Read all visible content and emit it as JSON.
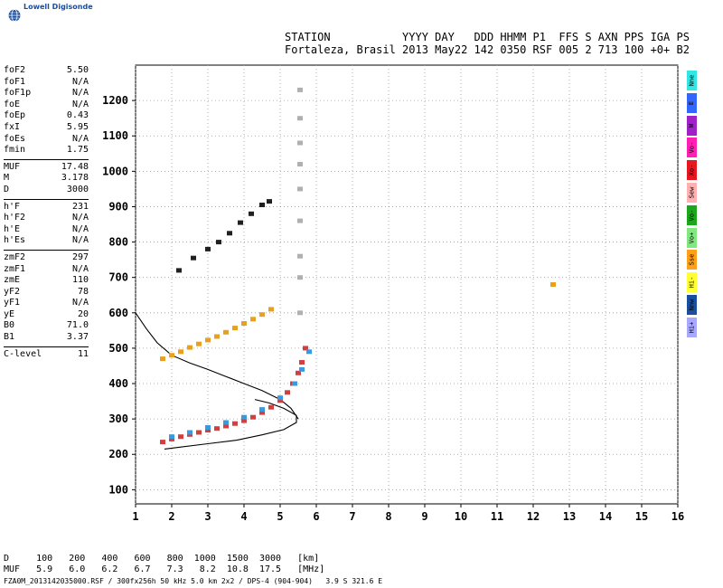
{
  "header": {
    "logo_text": "Lowell Digisonde",
    "labels_line": "STATION           YYYY DAY   DDD HHMM P1  FFS S AXN PPS IGA PS",
    "values_line": "Fortaleza, Brasil 2013 May22 142 0350 RSF 005 2 713 100 +0+ B2"
  },
  "params": {
    "groups": [
      [
        [
          "foF2",
          "5.50"
        ],
        [
          "foF1",
          "N/A"
        ],
        [
          "foF1p",
          "N/A"
        ],
        [
          "foE",
          "N/A"
        ],
        [
          "foEp",
          "0.43"
        ],
        [
          "fxI",
          "5.95"
        ],
        [
          "foEs",
          "N/A"
        ],
        [
          "fmin",
          "1.75"
        ]
      ],
      [
        [
          "MUF",
          "17.48"
        ],
        [
          "M",
          "3.178"
        ],
        [
          "D",
          "3000"
        ]
      ],
      [
        [
          "h'F",
          "231"
        ],
        [
          "h'F2",
          "N/A"
        ],
        [
          "h'E",
          "N/A"
        ],
        [
          "h'Es",
          "N/A"
        ]
      ],
      [
        [
          "zmF2",
          "297"
        ],
        [
          "zmF1",
          "N/A"
        ],
        [
          "zmE",
          "110"
        ],
        [
          "yF2",
          "78"
        ],
        [
          "yF1",
          "N/A"
        ],
        [
          "yE",
          "20"
        ],
        [
          "B0",
          "71.0"
        ],
        [
          "B1",
          "3.37"
        ]
      ],
      [
        [
          "C-level",
          "11"
        ]
      ]
    ]
  },
  "legend": {
    "items": [
      {
        "label": "Nne",
        "color": "#33e6e6"
      },
      {
        "label": "E",
        "color": "#3366ff"
      },
      {
        "label": "W",
        "color": "#a020c8"
      },
      {
        "label": "Vo-",
        "color": "#ff1fb4"
      },
      {
        "label": "Xo-",
        "color": "#e8171f"
      },
      {
        "label": "Sew",
        "color": "#ffb0b0"
      },
      {
        "label": "Vo-",
        "color": "#1aa81a"
      },
      {
        "label": "Vo+",
        "color": "#7fe87f"
      },
      {
        "label": "Sse",
        "color": "#ffa01a"
      },
      {
        "label": "Hi-",
        "color": "#ffff33"
      },
      {
        "label": "Nnw",
        "color": "#1a4fa0"
      },
      {
        "label": "Hi+",
        "color": "#a8a8ff"
      }
    ]
  },
  "dmuf": {
    "d_line": "D     100   200   400   600   800  1000  1500  3000   [km]",
    "muf_line": "MUF   5.9   6.0   6.2   6.7   7.3   8.2  10.8  17.5   [MHz]"
  },
  "footer": {
    "text": "FZA0M_2013142035000.RSF / 300fx256h 50 kHz 5.0 km 2x2 / DPS-4 (904-904)   3.9 S 321.6 E"
  },
  "chart_data": {
    "type": "scatter",
    "title": "",
    "xlabel": "",
    "ylabel": "",
    "xlim": [
      1,
      16
    ],
    "ylim": [
      60,
      1300
    ],
    "x_ticks": [
      1,
      2,
      3,
      4,
      5,
      6,
      7,
      8,
      9,
      10,
      11,
      12,
      13,
      14,
      15,
      16
    ],
    "y_ticks": [
      100,
      200,
      300,
      400,
      500,
      600,
      700,
      800,
      900,
      1000,
      1100,
      1200
    ],
    "grid": true,
    "series": [
      {
        "trace": "o-trace",
        "color": "#d04040",
        "points": [
          [
            1.75,
            235
          ],
          [
            2.0,
            243
          ],
          [
            2.25,
            250
          ],
          [
            2.5,
            256
          ],
          [
            2.75,
            262
          ],
          [
            3.0,
            268
          ],
          [
            3.25,
            273
          ],
          [
            3.5,
            280
          ],
          [
            3.75,
            287
          ],
          [
            4.0,
            295
          ],
          [
            4.25,
            305
          ],
          [
            4.5,
            318
          ],
          [
            4.75,
            333
          ],
          [
            5.0,
            352
          ],
          [
            5.2,
            375
          ],
          [
            5.35,
            400
          ],
          [
            5.5,
            430
          ],
          [
            5.6,
            460
          ],
          [
            5.7,
            500
          ]
        ]
      },
      {
        "trace": "x-trace",
        "color": "#3a9ae0",
        "points": [
          [
            2.0,
            250
          ],
          [
            2.5,
            262
          ],
          [
            3.0,
            276
          ],
          [
            3.5,
            290
          ],
          [
            4.0,
            305
          ],
          [
            4.5,
            327
          ],
          [
            5.0,
            360
          ],
          [
            5.4,
            400
          ],
          [
            5.6,
            440
          ],
          [
            5.8,
            490
          ]
        ]
      },
      {
        "trace": "2nd-hop",
        "color": "#e8a020",
        "points": [
          [
            1.75,
            470
          ],
          [
            2.0,
            480
          ],
          [
            2.25,
            490
          ],
          [
            2.5,
            502
          ],
          [
            2.75,
            512
          ],
          [
            3.0,
            523
          ],
          [
            3.25,
            533
          ],
          [
            3.5,
            545
          ],
          [
            3.75,
            557
          ],
          [
            4.0,
            570
          ],
          [
            4.25,
            582
          ],
          [
            4.5,
            595
          ],
          [
            4.75,
            610
          ]
        ]
      },
      {
        "trace": "3rd-hop",
        "color": "#202020",
        "points": [
          [
            2.2,
            720
          ],
          [
            2.6,
            755
          ],
          [
            3.0,
            780
          ],
          [
            3.3,
            800
          ],
          [
            3.6,
            825
          ],
          [
            3.9,
            855
          ],
          [
            4.2,
            880
          ],
          [
            4.5,
            905
          ],
          [
            4.7,
            915
          ]
        ]
      },
      {
        "trace": "spread-F",
        "color": "#b0b0b0",
        "points": [
          [
            5.55,
            600
          ],
          [
            5.55,
            700
          ],
          [
            5.55,
            760
          ],
          [
            5.55,
            860
          ],
          [
            5.55,
            950
          ],
          [
            5.55,
            1020
          ],
          [
            5.55,
            1080
          ],
          [
            5.55,
            1150
          ],
          [
            5.55,
            1230
          ]
        ]
      },
      {
        "trace": "isolated",
        "color": "#e8a020",
        "points": [
          [
            12.55,
            680
          ]
        ]
      }
    ],
    "profile_lines": [
      {
        "name": "model",
        "points": [
          [
            1.0,
            600
          ],
          [
            1.3,
            555
          ],
          [
            1.6,
            515
          ],
          [
            2.0,
            480
          ],
          [
            2.5,
            458
          ],
          [
            3.0,
            440
          ],
          [
            3.5,
            420
          ],
          [
            4.0,
            400
          ],
          [
            4.5,
            380
          ],
          [
            5.0,
            355
          ],
          [
            5.3,
            330
          ],
          [
            5.5,
            300
          ]
        ]
      },
      {
        "name": "profile",
        "points": [
          [
            1.8,
            215
          ],
          [
            2.2,
            220
          ],
          [
            3.0,
            230
          ],
          [
            3.8,
            240
          ],
          [
            4.5,
            255
          ],
          [
            5.1,
            270
          ],
          [
            5.45,
            290
          ],
          [
            5.45,
            310
          ],
          [
            5.1,
            330
          ],
          [
            4.7,
            345
          ],
          [
            4.3,
            355
          ]
        ]
      }
    ]
  }
}
